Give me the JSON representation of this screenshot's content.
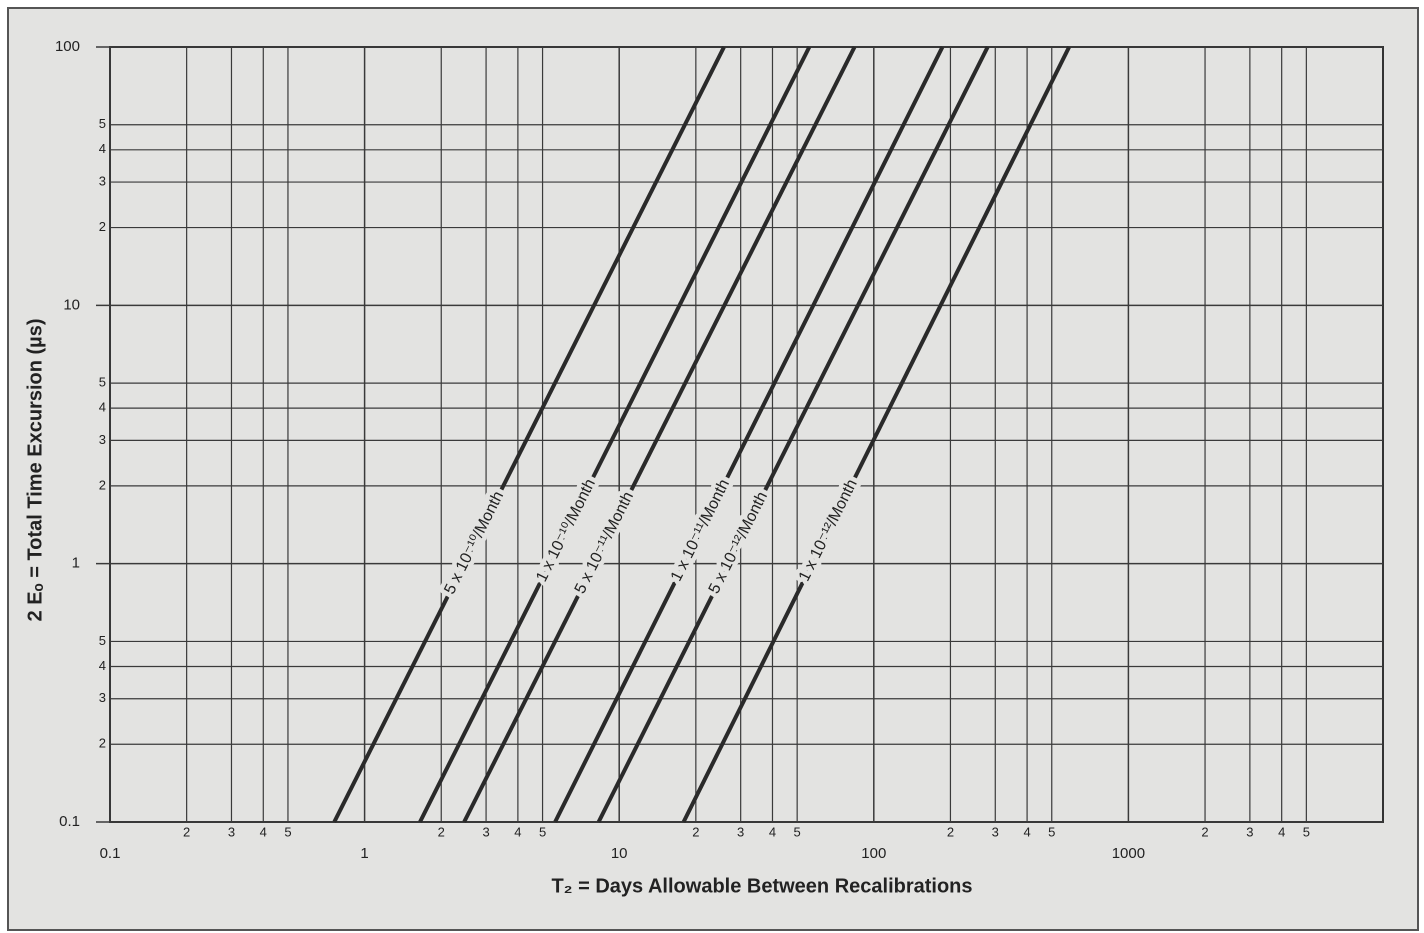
{
  "chart_data": {
    "type": "line",
    "xlabel": "T₂ = Days Allowable Between Recalibrations",
    "ylabel": "2 Eₒ = Total Time Excursion (µs)",
    "log_x": true,
    "log_y": true,
    "grid": true,
    "xlim": [
      0.1,
      10000
    ],
    "ylim": [
      0.1,
      100
    ],
    "xticks": [
      0.1,
      {
        "value": 0.2,
        "label": "2"
      },
      {
        "value": 0.3,
        "label": "3"
      },
      {
        "value": 0.4,
        "label": "4"
      },
      {
        "value": 0.5,
        "label": "5"
      },
      1,
      {
        "value": 2,
        "label": "2"
      },
      {
        "value": 3,
        "label": "3"
      },
      {
        "value": 4,
        "label": "4"
      },
      {
        "value": 5,
        "label": "5"
      },
      10,
      {
        "value": 20,
        "label": "2"
      },
      {
        "value": 30,
        "label": "3"
      },
      {
        "value": 40,
        "label": "4"
      },
      {
        "value": 50,
        "label": "5"
      },
      100,
      {
        "value": 200,
        "label": "2"
      },
      {
        "value": 300,
        "label": "3"
      },
      {
        "value": 400,
        "label": "4"
      },
      {
        "value": 500,
        "label": "5"
      },
      1000,
      {
        "value": 2000,
        "label": "2"
      },
      {
        "value": 3000,
        "label": "3"
      },
      {
        "value": 4000,
        "label": "4"
      },
      {
        "value": 5000,
        "label": "5"
      }
    ],
    "yticks": [
      0.1,
      {
        "value": 0.2,
        "label": "2"
      },
      {
        "value": 0.3,
        "label": "3"
      },
      {
        "value": 0.4,
        "label": "4"
      },
      {
        "value": 0.5,
        "label": "5"
      },
      1,
      {
        "value": 2,
        "label": "2"
      },
      {
        "value": 3,
        "label": "3"
      },
      {
        "value": 4,
        "label": "4"
      },
      {
        "value": 5,
        "label": "5"
      },
      10,
      {
        "value": 20,
        "label": "2"
      },
      {
        "value": 30,
        "label": "3"
      },
      {
        "value": 40,
        "label": "4"
      },
      {
        "value": 50,
        "label": "5"
      },
      100
    ],
    "series": [
      {
        "name": "5 x 10⁻¹⁰/Month",
        "color": "#2a2a2a",
        "x": [
          0.76,
          25.8
        ],
        "values": [
          0.1,
          100
        ]
      },
      {
        "name": "1 x 10⁻¹⁰/Month",
        "color": "#2a2a2a",
        "x": [
          1.65,
          55.8
        ],
        "values": [
          0.1,
          100
        ]
      },
      {
        "name": "5 x 10⁻¹¹/Month",
        "color": "#2a2a2a",
        "x": [
          2.46,
          84
        ],
        "values": [
          0.1,
          100
        ]
      },
      {
        "name": "1 x 10⁻¹¹/Month",
        "color": "#2a2a2a",
        "x": [
          5.6,
          186
        ],
        "values": [
          0.1,
          100
        ]
      },
      {
        "name": "5 x 10⁻¹²/Month",
        "color": "#2a2a2a",
        "x": [
          8.3,
          280
        ],
        "values": [
          0.1,
          100
        ]
      },
      {
        "name": "1 x 10⁻¹²/Month",
        "color": "#2a2a2a",
        "x": [
          17.9,
          585
        ],
        "values": [
          0.1,
          100
        ]
      }
    ]
  }
}
